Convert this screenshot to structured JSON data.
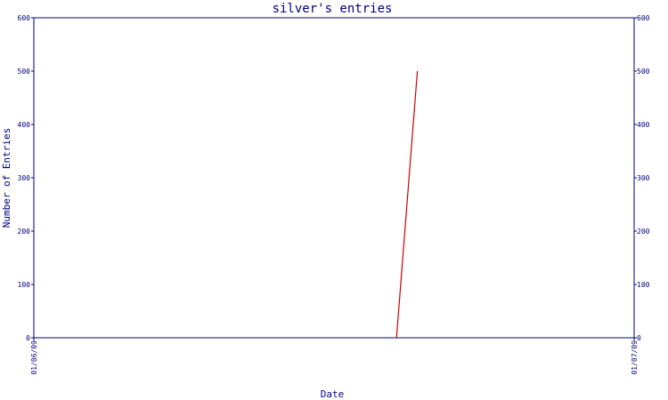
{
  "chart_data": {
    "type": "line",
    "title": "silver's entries",
    "xlabel": "Date",
    "ylabel": "Number of Entries",
    "x_range": [
      "01/06/09",
      "01/07/09"
    ],
    "x_tick_labels": [
      "01/06/09",
      "01/07/09"
    ],
    "ylim": [
      0,
      600
    ],
    "y_ticks": [
      0,
      100,
      200,
      300,
      400,
      500,
      600
    ],
    "right_axis_ticks": [
      0,
      100,
      200,
      300,
      400,
      500,
      600
    ],
    "grid": false,
    "legend": "none",
    "series": [
      {
        "color": "#cc0000",
        "points": [
          {
            "x": "2009-01-06T14:30",
            "y": 0
          },
          {
            "x": "2009-01-06T15:20",
            "y": 500
          }
        ]
      }
    ]
  }
}
